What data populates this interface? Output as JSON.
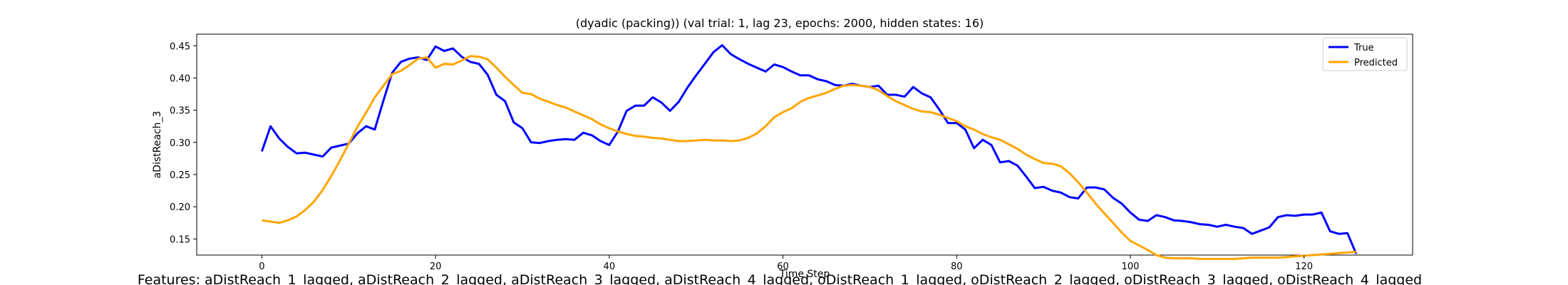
{
  "chart_data": {
    "type": "line",
    "title": "(dyadic (packing)) (val trial: 1, lag 23, epochs: 2000, hidden states: 16)",
    "xlabel": "Time Step",
    "ylabel": "aDistReach_3",
    "xlim": [
      -7.5,
      132.5
    ],
    "ylim": [
      0.125,
      0.468
    ],
    "xticks": [
      0,
      20,
      40,
      60,
      80,
      100,
      120
    ],
    "yticks": [
      0.15,
      0.2,
      0.25,
      0.3,
      0.35,
      0.4,
      0.45
    ],
    "grid": false,
    "legend_position": "top-right",
    "series": [
      {
        "name": "True",
        "color": "#0000ff",
        "x": [
          0,
          1,
          2,
          3,
          4,
          5,
          6,
          7,
          8,
          9,
          10,
          11,
          12,
          13,
          14,
          15,
          16,
          17,
          18,
          19,
          20,
          21,
          22,
          23,
          24,
          25,
          26,
          27,
          28,
          29,
          30,
          31,
          32,
          33,
          34,
          35,
          36,
          37,
          38,
          39,
          40,
          41,
          42,
          43,
          44,
          45,
          46,
          47,
          48,
          49,
          50,
          51,
          52,
          53,
          54,
          55,
          56,
          57,
          58,
          59,
          60,
          61,
          62,
          63,
          64,
          65,
          66,
          67,
          68,
          69,
          70,
          71,
          72,
          73,
          74,
          75,
          76,
          77,
          78,
          79,
          80,
          81,
          82,
          83,
          84,
          85,
          86,
          87,
          88,
          89,
          90,
          91,
          92,
          93,
          94,
          95,
          96,
          97,
          98,
          99,
          100,
          101,
          102,
          103,
          104,
          105,
          106,
          107,
          108,
          109,
          110,
          111,
          112,
          113,
          114,
          115,
          116,
          117,
          118,
          119,
          120,
          121,
          122,
          123,
          124,
          125,
          126
        ],
        "y": [
          0.286,
          0.325,
          0.306,
          0.293,
          0.283,
          0.284,
          0.281,
          0.278,
          0.292,
          0.295,
          0.298,
          0.314,
          0.325,
          0.32,
          0.365,
          0.408,
          0.425,
          0.43,
          0.432,
          0.428,
          0.449,
          0.442,
          0.446,
          0.433,
          0.425,
          0.422,
          0.405,
          0.374,
          0.364,
          0.331,
          0.322,
          0.3,
          0.299,
          0.302,
          0.304,
          0.305,
          0.304,
          0.315,
          0.311,
          0.302,
          0.296,
          0.317,
          0.349,
          0.357,
          0.357,
          0.37,
          0.362,
          0.349,
          0.363,
          0.385,
          0.404,
          0.422,
          0.44,
          0.451,
          0.437,
          0.429,
          0.422,
          0.416,
          0.41,
          0.421,
          0.417,
          0.41,
          0.404,
          0.404,
          0.398,
          0.395,
          0.389,
          0.388,
          0.391,
          0.388,
          0.386,
          0.388,
          0.374,
          0.374,
          0.371,
          0.386,
          0.376,
          0.37,
          0.351,
          0.33,
          0.33,
          0.32,
          0.291,
          0.304,
          0.296,
          0.269,
          0.271,
          0.264,
          0.247,
          0.229,
          0.231,
          0.225,
          0.222,
          0.215,
          0.213,
          0.23,
          0.23,
          0.227,
          0.214,
          0.205,
          0.191,
          0.18,
          0.178,
          0.187,
          0.184,
          0.179,
          0.178,
          0.176,
          0.173,
          0.172,
          0.169,
          0.172,
          0.169,
          0.167,
          0.158,
          0.163,
          0.168,
          0.184,
          0.187,
          0.186,
          0.188,
          0.188,
          0.191,
          0.162,
          0.158,
          0.159,
          0.127
        ]
      },
      {
        "name": "Predicted",
        "color": "#ffa500",
        "x": [
          0,
          1,
          2,
          3,
          4,
          5,
          6,
          7,
          8,
          9,
          10,
          11,
          12,
          13,
          14,
          15,
          16,
          17,
          18,
          19,
          20,
          21,
          22,
          23,
          24,
          25,
          26,
          27,
          28,
          29,
          30,
          31,
          32,
          33,
          34,
          35,
          36,
          37,
          38,
          39,
          40,
          41,
          42,
          43,
          44,
          45,
          46,
          47,
          48,
          49,
          50,
          51,
          52,
          53,
          54,
          55,
          56,
          57,
          58,
          59,
          60,
          61,
          62,
          63,
          64,
          65,
          66,
          67,
          68,
          69,
          70,
          71,
          72,
          73,
          74,
          75,
          76,
          77,
          78,
          79,
          80,
          81,
          82,
          83,
          84,
          85,
          86,
          87,
          88,
          89,
          90,
          91,
          92,
          93,
          94,
          95,
          96,
          97,
          98,
          99,
          100,
          101,
          102,
          103,
          104,
          105,
          106,
          107,
          108,
          109,
          110,
          111,
          112,
          113,
          114,
          115,
          116,
          117,
          118,
          119,
          120,
          121,
          122,
          123,
          124,
          125,
          126
        ],
        "y": [
          0.179,
          0.177,
          0.175,
          0.179,
          0.185,
          0.195,
          0.208,
          0.226,
          0.248,
          0.272,
          0.298,
          0.324,
          0.346,
          0.37,
          0.388,
          0.406,
          0.411,
          0.42,
          0.43,
          0.432,
          0.416,
          0.422,
          0.421,
          0.427,
          0.434,
          0.433,
          0.429,
          0.416,
          0.402,
          0.389,
          0.377,
          0.375,
          0.368,
          0.363,
          0.358,
          0.354,
          0.348,
          0.342,
          0.336,
          0.328,
          0.322,
          0.317,
          0.313,
          0.31,
          0.309,
          0.307,
          0.306,
          0.304,
          0.302,
          0.302,
          0.303,
          0.304,
          0.303,
          0.303,
          0.302,
          0.303,
          0.307,
          0.314,
          0.325,
          0.339,
          0.347,
          0.353,
          0.363,
          0.369,
          0.373,
          0.377,
          0.383,
          0.388,
          0.389,
          0.388,
          0.386,
          0.381,
          0.372,
          0.364,
          0.358,
          0.352,
          0.348,
          0.347,
          0.343,
          0.338,
          0.333,
          0.325,
          0.32,
          0.313,
          0.308,
          0.304,
          0.297,
          0.29,
          0.281,
          0.274,
          0.268,
          0.267,
          0.263,
          0.252,
          0.238,
          0.222,
          0.205,
          0.19,
          0.175,
          0.16,
          0.147,
          0.14,
          0.133,
          0.125,
          0.121,
          0.12,
          0.12,
          0.12,
          0.119,
          0.119,
          0.119,
          0.119,
          0.119,
          0.12,
          0.121,
          0.121,
          0.121,
          0.121,
          0.122,
          0.123,
          0.124,
          0.125,
          0.126,
          0.127,
          0.128,
          0.129,
          0.13
        ]
      }
    ]
  },
  "footer_text": "Features: aDistReach_1_lagged, aDistReach_2_lagged, aDistReach_3_lagged, aDistReach_4_lagged, oDistReach_1_lagged, oDistReach_2_lagged, oDistReach_3_lagged, oDistReach_4_lagged"
}
